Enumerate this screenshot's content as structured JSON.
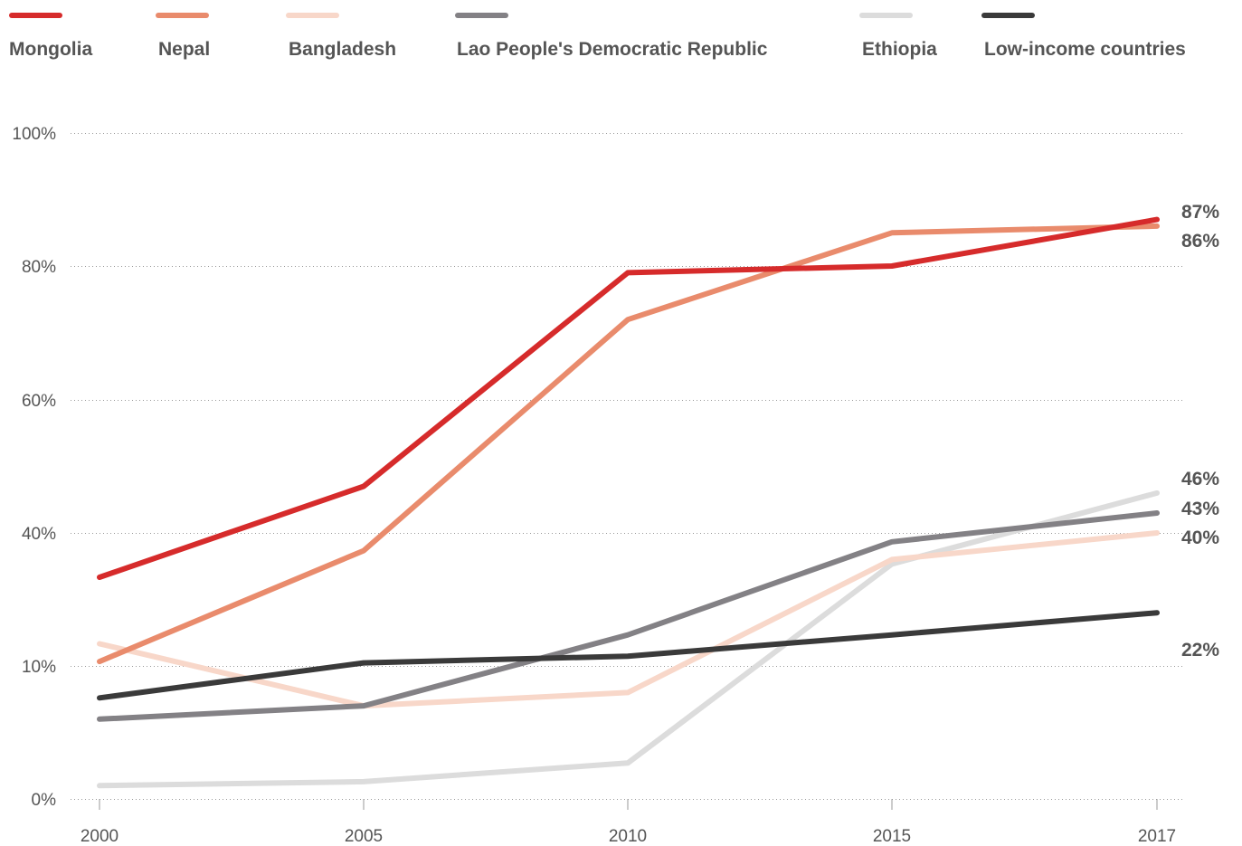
{
  "chart_data": {
    "type": "line",
    "x": [
      2000,
      2005,
      2010,
      2015,
      2017
    ],
    "x_tick_labels": [
      "2000",
      "2005",
      "2010",
      "2015",
      "2017"
    ],
    "y_tick_labels": [
      "0%",
      "",
      "10%",
      "40%",
      "60%",
      "80%",
      "100%"
    ],
    "y_axis_note": "non-linear scale: printed tick labels 0%, 10%, 40%, 60%, 80%, 100%",
    "grid": true,
    "legend_position": "top",
    "series": [
      {
        "name": "Mongolia",
        "color": "#d62b2b",
        "values": [
          30,
          47,
          79,
          80,
          87
        ]
      },
      {
        "name": "Nepal",
        "color": "#e98b6c",
        "values": [
          11,
          36,
          72,
          85,
          86
        ]
      },
      {
        "name": "Bangladesh",
        "color": "#f8d7c9",
        "values": [
          15,
          7,
          8,
          34,
          40
        ]
      },
      {
        "name": "Lao People's Democratic Republic",
        "color": "#838185",
        "values": [
          6,
          7,
          17,
          38,
          43
        ]
      },
      {
        "name": "Ethiopia",
        "color": "#dcdcdc",
        "values": [
          1,
          1.3,
          2.7,
          33,
          46
        ]
      },
      {
        "name": "Low-income countries",
        "color": "#3a3a3a",
        "values": [
          7.6,
          10.7,
          12.2,
          17,
          22
        ]
      }
    ],
    "end_labels": [
      {
        "text": "87%"
      },
      {
        "text": "86%"
      },
      {
        "text": "46%"
      },
      {
        "text": "43%"
      },
      {
        "text": "40%"
      },
      {
        "text": "22%"
      }
    ]
  }
}
